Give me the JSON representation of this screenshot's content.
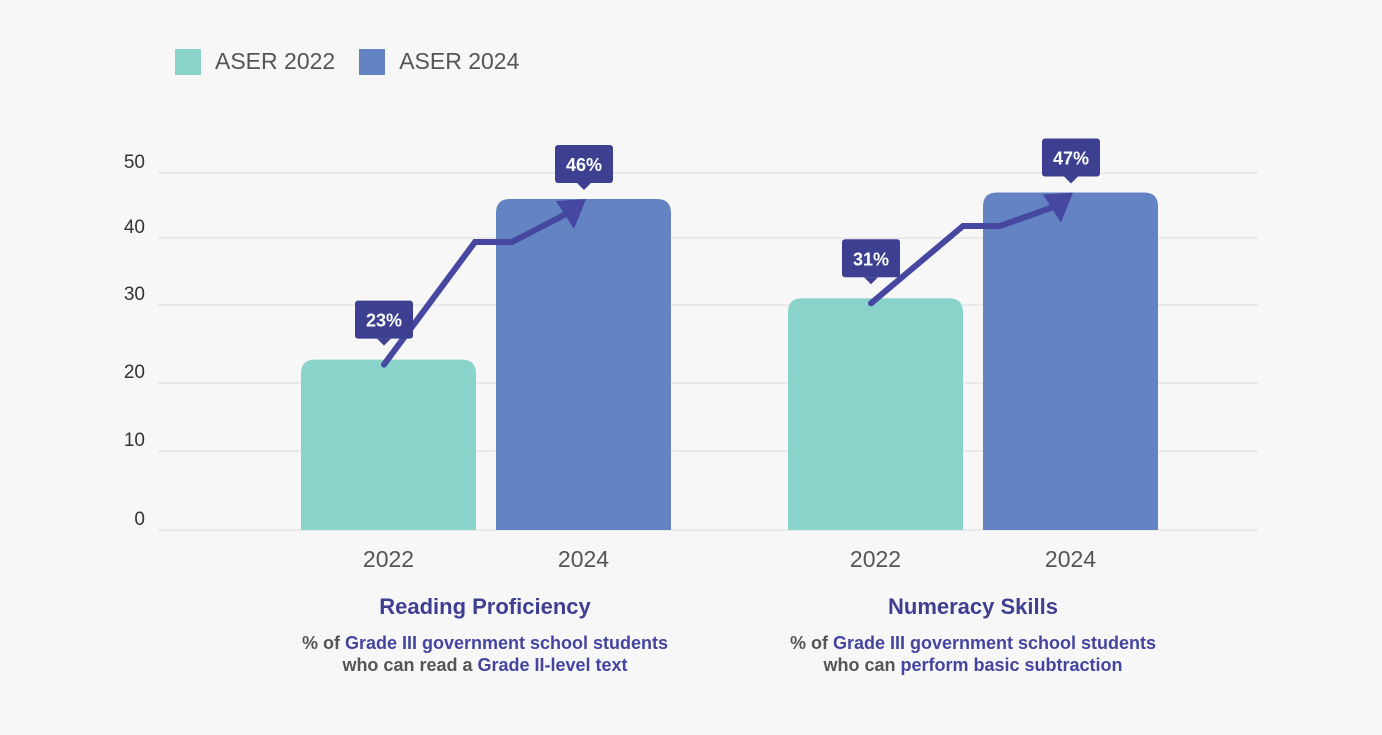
{
  "legend": [
    {
      "label": "ASER 2022",
      "color": "#8ad3ca"
    },
    {
      "label": "ASER 2024",
      "color": "#6383c3"
    }
  ],
  "groups": [
    {
      "title": "Reading Proficiency",
      "desc_parts": [
        {
          "text": "% of ",
          "hl": false
        },
        {
          "text": "Grade III government school students",
          "hl": true
        },
        {
          "text": "\n",
          "hl": false
        },
        {
          "text": "who can read a ",
          "hl": false
        },
        {
          "text": "Grade II-level text",
          "hl": true
        }
      ]
    },
    {
      "title": "Numeracy Skills",
      "desc_parts": [
        {
          "text": "% of ",
          "hl": false
        },
        {
          "text": "Grade III government school students",
          "hl": true
        },
        {
          "text": "\n",
          "hl": false
        },
        {
          "text": "who can ",
          "hl": false
        },
        {
          "text": "perform basic subtraction",
          "hl": true
        }
      ]
    }
  ],
  "colors": {
    "grid": "#e2e2e4",
    "tick_text": "#333333",
    "year_text": "#555558",
    "arrow": "#4547a0",
    "callout_bg": "#3d3f91",
    "callout_text": "#ffffff"
  },
  "chart_data": {
    "type": "bar",
    "title": "",
    "xlabel": "",
    "ylabel": "",
    "ylim": [
      0,
      50
    ],
    "yticks": [
      0,
      10,
      20,
      30,
      40,
      50
    ],
    "grid": true,
    "legend_position": "top-left",
    "categories": [
      "Reading Proficiency",
      "Numeracy Skills"
    ],
    "x_tick_labels": [
      [
        "2022",
        "2024"
      ],
      [
        "2022",
        "2024"
      ]
    ],
    "series": [
      {
        "name": "ASER 2022",
        "values": [
          23,
          31
        ],
        "labels": [
          "23%",
          "31%"
        ]
      },
      {
        "name": "ASER 2024",
        "values": [
          46,
          47
        ],
        "labels": [
          "46%",
          "47%"
        ]
      }
    ],
    "annotations": [
      "upward arrow from 2022 bar to 2024 bar in each group"
    ]
  }
}
